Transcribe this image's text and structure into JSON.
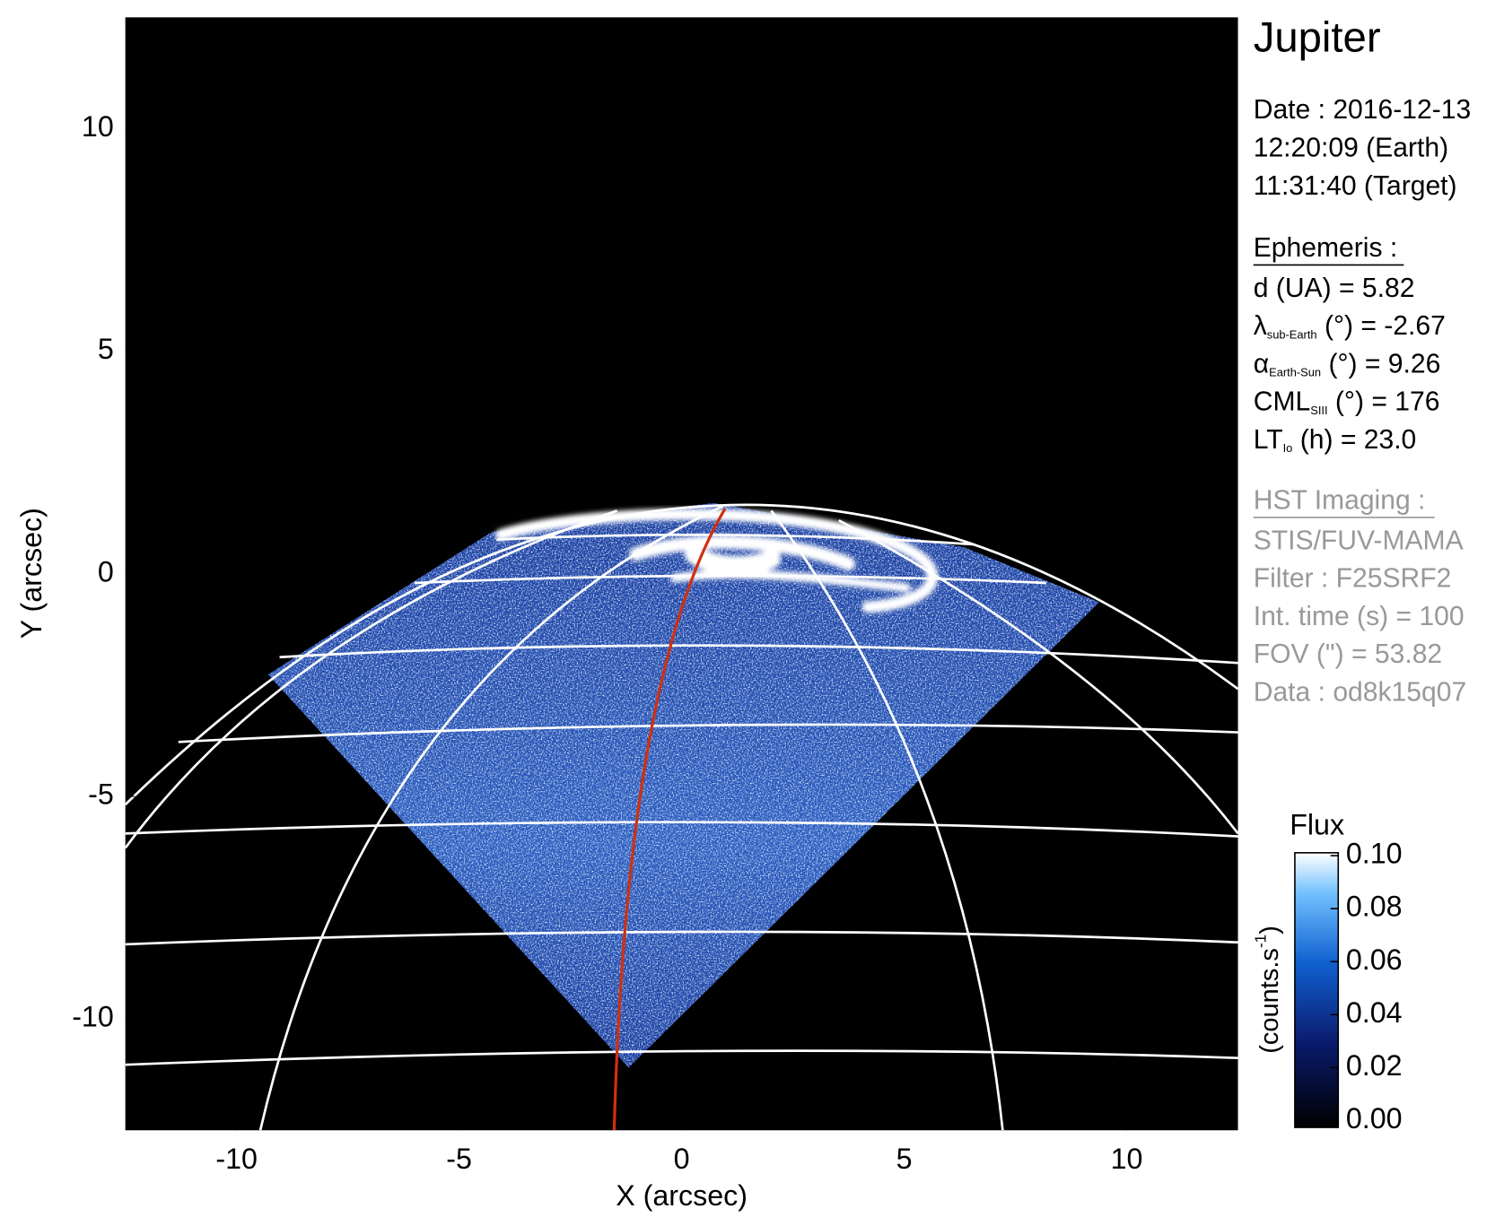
{
  "chart_data": {
    "type": "image",
    "title": "Jupiter",
    "xlabel": "X (arcsec)",
    "ylabel": "Y (arcsec)",
    "xlim": [
      -12.5,
      12.5
    ],
    "ylim": [
      -12.5,
      12.5
    ],
    "xticks": [
      -10,
      -5,
      0,
      5,
      10
    ],
    "yticks": [
      -10,
      -5,
      0,
      5,
      10
    ],
    "colorbar": {
      "label": "Flux",
      "unit": "(counts.s",
      "unit_sup": "-1",
      "clim": [
        0,
        0.1
      ],
      "ticks": [
        {
          "value": 0,
          "label": "0.00"
        },
        {
          "value": 0.02,
          "label": "0.02"
        },
        {
          "value": 0.04,
          "label": "0.04"
        },
        {
          "value": 0.06,
          "label": "0.06"
        },
        {
          "value": 0.08,
          "label": "0.08"
        },
        {
          "value": 0.1,
          "label": "0.10"
        }
      ]
    },
    "info": {
      "date": [
        "Date : 2016-12-13",
        "12:20:09 (Earth)",
        "11:31:40 (Target)"
      ],
      "ephemeris_title": "Ephemeris :",
      "ephemeris": [
        {
          "symbol": "d (UA)",
          "value": "   = 5.82"
        },
        {
          "symbol": "λ",
          "sub": "sub-Earth",
          "value": " (°) = -2.67"
        },
        {
          "symbol": "α",
          "sub": "Earth-Sun",
          "value": " (°) = 9.26"
        },
        {
          "symbol": "CML",
          "sub": "SIII",
          "value": " (°) = 176"
        },
        {
          "symbol": "LT",
          "sub": "Io",
          "value": " (h) = 23.0"
        }
      ],
      "imaging_title": "HST Imaging :",
      "imaging": [
        "STIS/FUV-MAMA",
        "Filter : F25SRF2",
        "Int. time (s) = 100",
        "FOV (\") = 53.82",
        "Data : od8k15q07"
      ]
    }
  }
}
